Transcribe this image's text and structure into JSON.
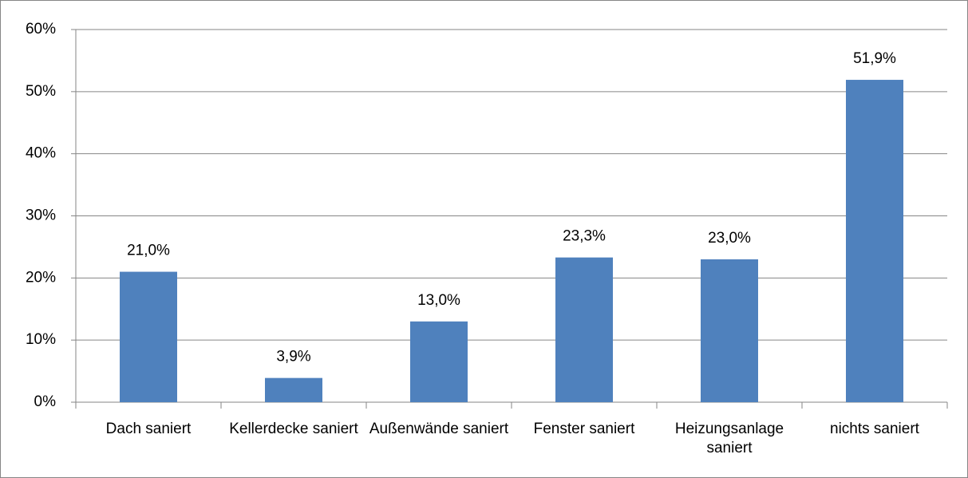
{
  "chart_data": {
    "type": "bar",
    "categories": [
      "Dach saniert",
      "Kellerdecke saniert",
      "Außenwände saniert",
      "Fenster saniert",
      "Heizungsanlage saniert",
      "nichts saniert"
    ],
    "values": [
      21.0,
      3.9,
      13.0,
      23.3,
      23.0,
      51.9
    ],
    "value_labels": [
      "21,0%",
      "3,9%",
      "13,0%",
      "23,3%",
      "23,0%",
      "51,9%"
    ],
    "color": "#4f81bd",
    "ylim": [
      0,
      60
    ],
    "yticks": [
      {
        "value": 0,
        "label": "0%"
      },
      {
        "value": 10,
        "label": "10%"
      },
      {
        "value": 20,
        "label": "20%"
      },
      {
        "value": 30,
        "label": "30%"
      },
      {
        "value": 40,
        "label": "40%"
      },
      {
        "value": 50,
        "label": "50%"
      },
      {
        "value": 60,
        "label": "60%"
      }
    ],
    "grid": true
  }
}
